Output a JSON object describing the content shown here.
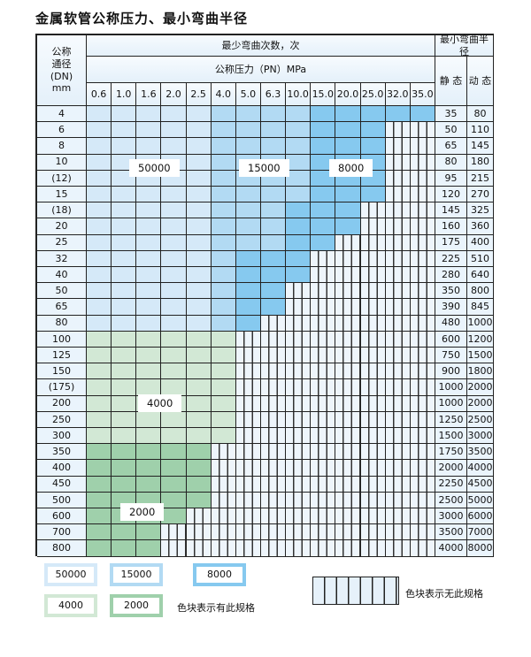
{
  "title": "金属软管公称压力、最小弯曲半径",
  "header": {
    "dn": "公称\n通径\n(DN)\nmm",
    "cycles": "最少弯曲次数，次",
    "pressure": "公称压力（PN）MPa",
    "radius": "最小弯曲半径",
    "static": "静 态",
    "dynamic": "动 态"
  },
  "pressures": [
    "0.6",
    "1.0",
    "1.6",
    "2.0",
    "2.5",
    "4.0",
    "5.0",
    "6.3",
    "10.0",
    "15.0",
    "20.0",
    "25.0",
    "32.0",
    "35.0"
  ],
  "categories": {
    "A": {
      "value": "50000",
      "color": "#d5e9f8"
    },
    "B": {
      "value": "15000",
      "color": "#b2daf3"
    },
    "C": {
      "value": "8000",
      "color": "#86c9ef"
    },
    "D": {
      "value": "4000",
      "color": "#d2e8d5"
    },
    "E": {
      "value": "2000",
      "color": "#9fd0ab"
    }
  },
  "rows": [
    {
      "dn": "4",
      "static": "35",
      "dynamic": "80",
      "cells": "AAAAABBBBCCCCC"
    },
    {
      "dn": "6",
      "static": "50",
      "dynamic": "110",
      "cells": "AAAAABBBBCCC--"
    },
    {
      "dn": "8",
      "static": "65",
      "dynamic": "145",
      "cells": "AAAAABBBBCCC--"
    },
    {
      "dn": "10",
      "static": "80",
      "dynamic": "180",
      "cells": "AAAAABBBBCCC--"
    },
    {
      "dn": "(12)",
      "static": "95",
      "dynamic": "215",
      "cells": "AAAAABBBBCCC--"
    },
    {
      "dn": "15",
      "static": "120",
      "dynamic": "270",
      "cells": "AAAAABBBBCCC--"
    },
    {
      "dn": "(18)",
      "static": "145",
      "dynamic": "325",
      "cells": "AAAAABBBCCC---"
    },
    {
      "dn": "20",
      "static": "160",
      "dynamic": "360",
      "cells": "AAAAABBBCCC---"
    },
    {
      "dn": "25",
      "static": "175",
      "dynamic": "400",
      "cells": "AAAAABBBCC----"
    },
    {
      "dn": "32",
      "static": "225",
      "dynamic": "510",
      "cells": "AAAAABCCC-----"
    },
    {
      "dn": "40",
      "static": "280",
      "dynamic": "640",
      "cells": "AAAAABCCC-----"
    },
    {
      "dn": "50",
      "static": "350",
      "dynamic": "800",
      "cells": "AAAAABCC------"
    },
    {
      "dn": "65",
      "static": "390",
      "dynamic": "845",
      "cells": "AAAAABCC------"
    },
    {
      "dn": "80",
      "static": "480",
      "dynamic": "1000",
      "cells": "AAAAABC-------"
    },
    {
      "dn": "100",
      "static": "600",
      "dynamic": "1200",
      "cells": "DDDDDD--------"
    },
    {
      "dn": "125",
      "static": "750",
      "dynamic": "1500",
      "cells": "DDDDDD--------"
    },
    {
      "dn": "150",
      "static": "900",
      "dynamic": "1800",
      "cells": "DDDDDD--------"
    },
    {
      "dn": "(175)",
      "static": "1000",
      "dynamic": "2000",
      "cells": "DDDDDD--------"
    },
    {
      "dn": "200",
      "static": "1000",
      "dynamic": "2000",
      "cells": "DDDDDD--------"
    },
    {
      "dn": "250",
      "static": "1250",
      "dynamic": "2500",
      "cells": "DDDDDD--------"
    },
    {
      "dn": "300",
      "static": "1500",
      "dynamic": "3000",
      "cells": "DDDDDD--------"
    },
    {
      "dn": "350",
      "static": "1750",
      "dynamic": "3500",
      "cells": "EEEEE---------"
    },
    {
      "dn": "400",
      "static": "2000",
      "dynamic": "4000",
      "cells": "EEEEE---------"
    },
    {
      "dn": "450",
      "static": "2250",
      "dynamic": "4500",
      "cells": "EEEEE---------"
    },
    {
      "dn": "500",
      "static": "2500",
      "dynamic": "5000",
      "cells": "EEEEE---------"
    },
    {
      "dn": "600",
      "static": "3000",
      "dynamic": "6000",
      "cells": "EEEE----------"
    },
    {
      "dn": "700",
      "static": "3500",
      "dynamic": "7000",
      "cells": "EEE-----------"
    },
    {
      "dn": "800",
      "static": "4000",
      "dynamic": "8000",
      "cells": "EEE-----------"
    }
  ],
  "region_labels": {
    "a": "50000",
    "b": "15000",
    "c": "8000",
    "d": "4000",
    "e": "2000"
  },
  "legend": {
    "has_spec": "色块表示有此规格",
    "no_spec": "色块表示无此规格"
  }
}
